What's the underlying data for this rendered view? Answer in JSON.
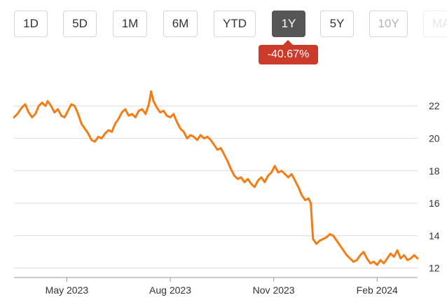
{
  "range_buttons": [
    {
      "label": "1D",
      "state": "normal"
    },
    {
      "label": "5D",
      "state": "normal"
    },
    {
      "label": "1M",
      "state": "normal"
    },
    {
      "label": "6M",
      "state": "normal"
    },
    {
      "label": "YTD",
      "state": "normal"
    },
    {
      "label": "1Y",
      "state": "active"
    },
    {
      "label": "5Y",
      "state": "normal"
    },
    {
      "label": "10Y",
      "state": "disabled"
    },
    {
      "label": "MAX",
      "state": "faded"
    }
  ],
  "change_badge": {
    "text": "-40.67%",
    "color": "#cc3a2a"
  },
  "chart_data": {
    "type": "line",
    "title": "",
    "xlabel": "",
    "ylabel": "",
    "line_color": "#f47c14",
    "grid": true,
    "ylim": [
      11.6,
      23.0
    ],
    "y_ticks": [
      "12",
      "14",
      "16",
      "18",
      "20",
      "22"
    ],
    "x_ticks": [
      {
        "label": "May 2023",
        "date": "2023-05-01"
      },
      {
        "label": "Aug 2023",
        "date": "2023-08-01"
      },
      {
        "label": "Nov 2023",
        "date": "2023-11-01"
      },
      {
        "label": "Feb 2024",
        "date": "2024-02-01"
      }
    ],
    "series": [
      {
        "values": [
          [
            "2023-03-15",
            21.3
          ],
          [
            "2023-03-18",
            21.5
          ],
          [
            "2023-03-22",
            21.9
          ],
          [
            "2023-03-25",
            22.1
          ],
          [
            "2023-03-28",
            21.6
          ],
          [
            "2023-03-31",
            21.3
          ],
          [
            "2023-04-03",
            21.5
          ],
          [
            "2023-04-06",
            22.0
          ],
          [
            "2023-04-09",
            22.2
          ],
          [
            "2023-04-12",
            22.0
          ],
          [
            "2023-04-14",
            22.3
          ],
          [
            "2023-04-17",
            22.0
          ],
          [
            "2023-04-20",
            21.6
          ],
          [
            "2023-04-23",
            21.8
          ],
          [
            "2023-04-26",
            21.4
          ],
          [
            "2023-04-29",
            21.3
          ],
          [
            "2023-05-02",
            21.7
          ],
          [
            "2023-05-05",
            22.1
          ],
          [
            "2023-05-08",
            22.0
          ],
          [
            "2023-05-11",
            21.5
          ],
          [
            "2023-05-14",
            20.9
          ],
          [
            "2023-05-17",
            20.6
          ],
          [
            "2023-05-20",
            20.3
          ],
          [
            "2023-05-23",
            19.9
          ],
          [
            "2023-05-26",
            19.8
          ],
          [
            "2023-05-29",
            20.1
          ],
          [
            "2023-06-01",
            20.0
          ],
          [
            "2023-06-04",
            20.3
          ],
          [
            "2023-06-07",
            20.5
          ],
          [
            "2023-06-10",
            20.4
          ],
          [
            "2023-06-13",
            20.9
          ],
          [
            "2023-06-16",
            21.2
          ],
          [
            "2023-06-19",
            21.6
          ],
          [
            "2023-06-22",
            21.8
          ],
          [
            "2023-06-25",
            21.4
          ],
          [
            "2023-06-28",
            21.5
          ],
          [
            "2023-07-01",
            21.3
          ],
          [
            "2023-07-04",
            21.7
          ],
          [
            "2023-07-07",
            21.8
          ],
          [
            "2023-07-10",
            21.5
          ],
          [
            "2023-07-13",
            22.1
          ],
          [
            "2023-07-15",
            22.9
          ],
          [
            "2023-07-17",
            22.3
          ],
          [
            "2023-07-20",
            21.9
          ],
          [
            "2023-07-23",
            21.6
          ],
          [
            "2023-07-26",
            21.7
          ],
          [
            "2023-07-29",
            21.4
          ],
          [
            "2023-08-01",
            21.3
          ],
          [
            "2023-08-04",
            21.5
          ],
          [
            "2023-08-07",
            21.0
          ],
          [
            "2023-08-10",
            20.6
          ],
          [
            "2023-08-13",
            20.4
          ],
          [
            "2023-08-16",
            20.0
          ],
          [
            "2023-08-19",
            20.2
          ],
          [
            "2023-08-22",
            20.1
          ],
          [
            "2023-08-25",
            19.9
          ],
          [
            "2023-08-28",
            20.2
          ],
          [
            "2023-08-31",
            20.0
          ],
          [
            "2023-09-03",
            20.1
          ],
          [
            "2023-09-06",
            19.9
          ],
          [
            "2023-09-09",
            19.6
          ],
          [
            "2023-09-12",
            19.3
          ],
          [
            "2023-09-15",
            19.4
          ],
          [
            "2023-09-18",
            19.0
          ],
          [
            "2023-09-21",
            18.6
          ],
          [
            "2023-09-24",
            18.1
          ],
          [
            "2023-09-27",
            17.7
          ],
          [
            "2023-09-30",
            17.5
          ],
          [
            "2023-10-03",
            17.6
          ],
          [
            "2023-10-06",
            17.3
          ],
          [
            "2023-10-09",
            17.5
          ],
          [
            "2023-10-12",
            17.2
          ],
          [
            "2023-10-15",
            17.0
          ],
          [
            "2023-10-18",
            17.4
          ],
          [
            "2023-10-21",
            17.6
          ],
          [
            "2023-10-24",
            17.3
          ],
          [
            "2023-10-27",
            17.7
          ],
          [
            "2023-10-30",
            17.9
          ],
          [
            "2023-11-02",
            18.3
          ],
          [
            "2023-11-05",
            17.9
          ],
          [
            "2023-11-08",
            18.0
          ],
          [
            "2023-11-11",
            17.8
          ],
          [
            "2023-11-14",
            17.6
          ],
          [
            "2023-11-17",
            17.8
          ],
          [
            "2023-11-20",
            17.4
          ],
          [
            "2023-11-23",
            17.0
          ],
          [
            "2023-11-26",
            16.5
          ],
          [
            "2023-11-29",
            16.2
          ],
          [
            "2023-12-02",
            16.3
          ],
          [
            "2023-12-04",
            16.0
          ],
          [
            "2023-12-06",
            13.8
          ],
          [
            "2023-12-09",
            13.5
          ],
          [
            "2023-12-12",
            13.7
          ],
          [
            "2023-12-15",
            13.8
          ],
          [
            "2023-12-18",
            13.9
          ],
          [
            "2023-12-21",
            14.1
          ],
          [
            "2023-12-24",
            14.0
          ],
          [
            "2023-12-27",
            13.7
          ],
          [
            "2023-12-30",
            13.4
          ],
          [
            "2024-01-02",
            13.1
          ],
          [
            "2024-01-05",
            12.8
          ],
          [
            "2024-01-08",
            12.6
          ],
          [
            "2024-01-11",
            12.4
          ],
          [
            "2024-01-14",
            12.5
          ],
          [
            "2024-01-17",
            12.8
          ],
          [
            "2024-01-20",
            13.0
          ],
          [
            "2024-01-23",
            12.6
          ],
          [
            "2024-01-26",
            12.3
          ],
          [
            "2024-01-29",
            12.4
          ],
          [
            "2024-02-01",
            12.2
          ],
          [
            "2024-02-04",
            12.5
          ],
          [
            "2024-02-07",
            12.3
          ],
          [
            "2024-02-10",
            12.6
          ],
          [
            "2024-02-13",
            12.9
          ],
          [
            "2024-02-16",
            12.7
          ],
          [
            "2024-02-19",
            13.1
          ],
          [
            "2024-02-22",
            12.6
          ],
          [
            "2024-02-25",
            12.8
          ],
          [
            "2024-02-28",
            12.5
          ],
          [
            "2024-03-02",
            12.6
          ],
          [
            "2024-03-05",
            12.8
          ],
          [
            "2024-03-08",
            12.6
          ]
        ]
      }
    ]
  }
}
